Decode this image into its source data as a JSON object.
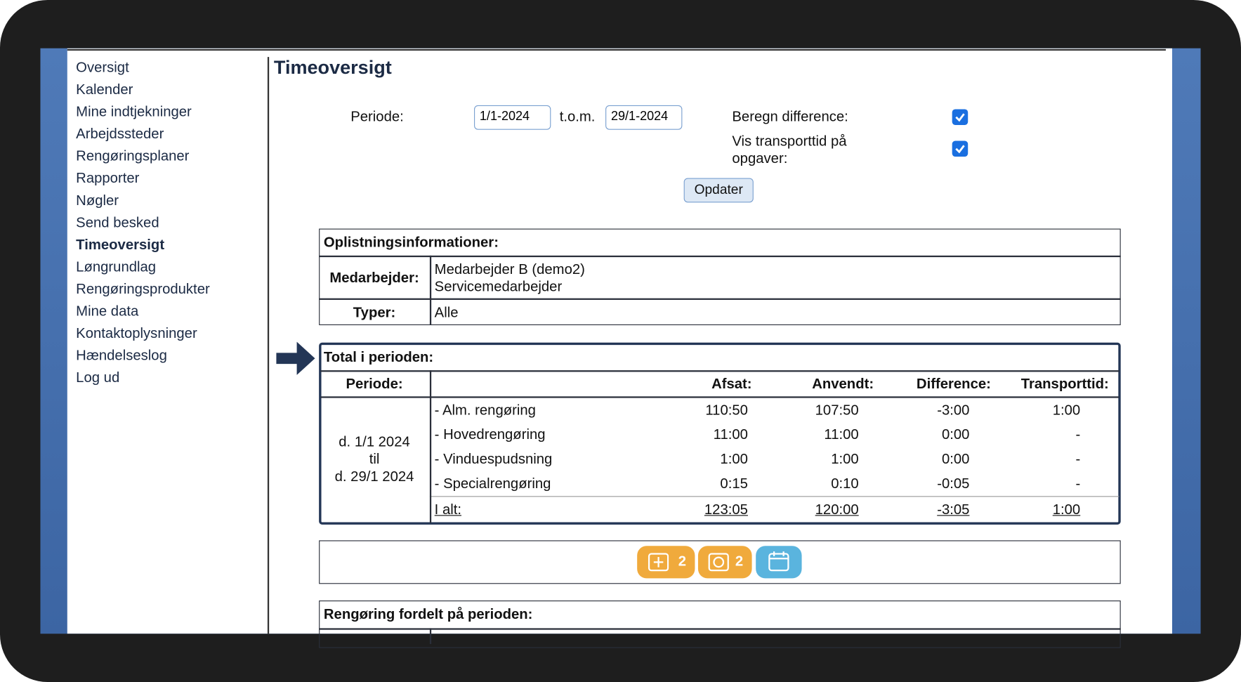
{
  "sidebar": {
    "items": [
      "Oversigt",
      "Kalender",
      "Mine indtjekninger",
      "Arbejdssteder",
      "Rengøringsplaner",
      "Rapporter",
      "Nøgler",
      "Send besked",
      "Timeoversigt",
      "Løngrundlag",
      "Rengøringsprodukter",
      "Mine data",
      "Kontaktoplysninger",
      "Hændelseslog",
      "Log ud"
    ]
  },
  "header": {
    "title": "Timeoversigt"
  },
  "form": {
    "period_label": "Periode:",
    "from": "1/1-2024",
    "to_label": "t.o.m.",
    "to": "29/1-2024",
    "diff_label": "Beregn difference:",
    "transport_label": "Vis transporttid på opgaver:",
    "button": "Opdater"
  },
  "info_table": {
    "title": "Oplistningsinformationer:",
    "rows": [
      {
        "label": "Medarbejder:",
        "lines": [
          "Medarbejder B (demo2)",
          "Servicemedarbejder"
        ]
      },
      {
        "label": "Typer:",
        "lines": [
          "Alle"
        ]
      }
    ]
  },
  "total_table": {
    "title": "Total i perioden:",
    "period_header": "Periode:",
    "columns": [
      "Afsat:",
      "Anvendt:",
      "Difference:",
      "Transporttid:"
    ],
    "period_lines": [
      "d. 1/1 2024",
      "til",
      "d. 29/1 2024"
    ],
    "rows": [
      [
        "- Alm. rengøring",
        "110:50",
        "107:50",
        "-3:00",
        "1:00"
      ],
      [
        "- Hovedrengøring",
        "11:00",
        "11:00",
        "0:00",
        "-"
      ],
      [
        "- Vinduespudsning",
        "1:00",
        "1:00",
        "0:00",
        "-"
      ],
      [
        "- Specialrengøring",
        "0:15",
        "0:10",
        "-0:05",
        "-"
      ]
    ],
    "total": [
      "I alt:",
      "123:05",
      "120:00",
      "-3:05",
      "1:00"
    ]
  },
  "badges": [
    "2",
    "2"
  ],
  "section": {
    "title": "Rengøring fordelt på perioden:"
  }
}
